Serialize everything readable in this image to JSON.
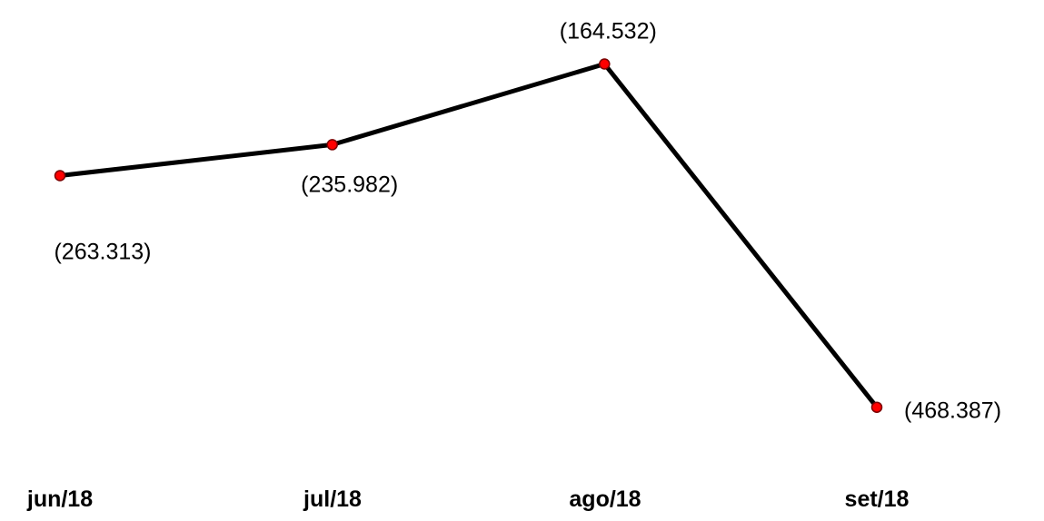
{
  "chart_data": {
    "type": "line",
    "categories": [
      "jun/18",
      "jul/18",
      "ago/18",
      "set/18"
    ],
    "values": [
      -263313,
      -235982,
      -164532,
      -468387
    ],
    "data_labels": [
      "(263.313)",
      "(235.982)",
      "(164.532)",
      "(468.387)"
    ],
    "title": "",
    "xlabel": "",
    "ylabel": "",
    "ylim": [
      -500000,
      -140000
    ],
    "grid": false,
    "legend": "none",
    "colors": {
      "line": "#000000",
      "marker_fill": "#ff0000",
      "marker_stroke": "#7a0000"
    }
  }
}
